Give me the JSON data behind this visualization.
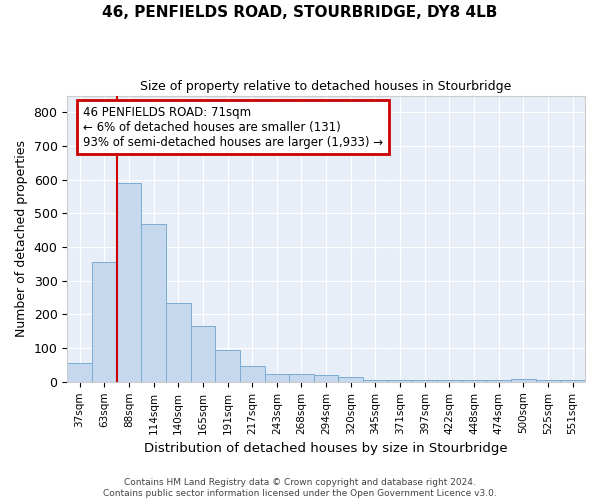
{
  "title_line1": "46, PENFIELDS ROAD, STOURBRIDGE, DY8 4LB",
  "title_line2": "Size of property relative to detached houses in Stourbridge",
  "xlabel": "Distribution of detached houses by size in Stourbridge",
  "ylabel": "Number of detached properties",
  "bar_color": "#c5d8ee",
  "bar_edge_color": "#7aadd4",
  "background_color": "#e8eef8",
  "grid_color": "#ffffff",
  "fig_background": "#ffffff",
  "categories": [
    "37sqm",
    "63sqm",
    "88sqm",
    "114sqm",
    "140sqm",
    "165sqm",
    "191sqm",
    "217sqm",
    "243sqm",
    "268sqm",
    "294sqm",
    "320sqm",
    "345sqm",
    "371sqm",
    "397sqm",
    "422sqm",
    "448sqm",
    "474sqm",
    "500sqm",
    "525sqm",
    "551sqm"
  ],
  "values": [
    57,
    355,
    590,
    468,
    235,
    165,
    95,
    47,
    22,
    22,
    20,
    14,
    5,
    5,
    5,
    5,
    5,
    5,
    9,
    4,
    4
  ],
  "ylim": [
    0,
    850
  ],
  "yticks": [
    0,
    100,
    200,
    300,
    400,
    500,
    600,
    700,
    800
  ],
  "property_line_x": 1.5,
  "annotation_line1": "46 PENFIELDS ROAD: 71sqm",
  "annotation_line2": "← 6% of detached houses are smaller (131)",
  "annotation_line3": "93% of semi-detached houses are larger (1,933) →",
  "annotation_box_color": "#cc0000",
  "annotation_fill": "#ffffff",
  "footer_line1": "Contains HM Land Registry data © Crown copyright and database right 2024.",
  "footer_line2": "Contains public sector information licensed under the Open Government Licence v3.0."
}
